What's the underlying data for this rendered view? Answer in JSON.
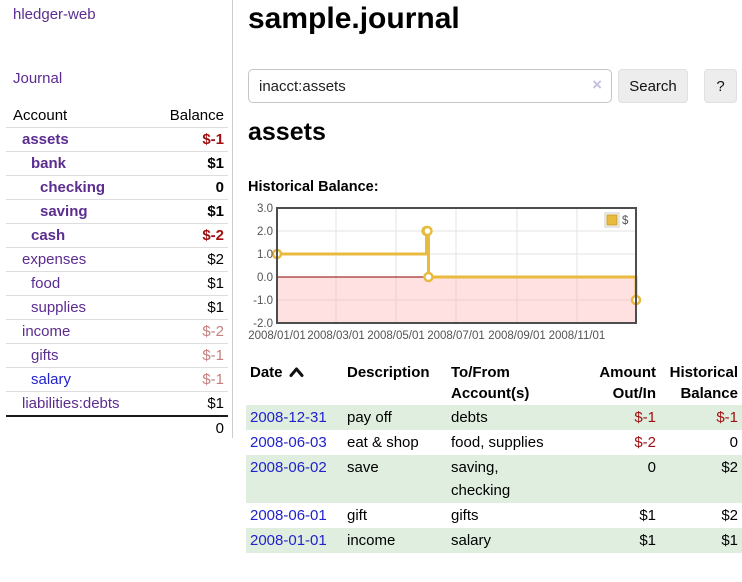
{
  "app": {
    "brand": "hledger-web"
  },
  "sidebar": {
    "nav_journal": "Journal",
    "accounts_table": {
      "header_account": "Account",
      "header_balance": "Balance",
      "rows": [
        {
          "name": "assets",
          "depth": 1,
          "balance": "$-1",
          "bold": true
        },
        {
          "name": "bank",
          "depth": 2,
          "balance": "$1",
          "bold": true
        },
        {
          "name": "checking",
          "depth": 3,
          "balance": "0",
          "bold": true
        },
        {
          "name": "saving",
          "depth": 3,
          "balance": "$1",
          "bold": true
        },
        {
          "name": "cash",
          "depth": 2,
          "balance": "$-2",
          "bold": true
        },
        {
          "name": "expenses",
          "depth": 1,
          "balance": "$2",
          "bold": false
        },
        {
          "name": "food",
          "depth": 2,
          "balance": "$1",
          "bold": false
        },
        {
          "name": "supplies",
          "depth": 2,
          "balance": "$1",
          "bold": false
        },
        {
          "name": "income",
          "depth": 1,
          "balance": "$-2",
          "bold": false
        },
        {
          "name": "gifts",
          "depth": 2,
          "balance": "$-1",
          "bold": false
        },
        {
          "name": "salary",
          "depth": 2,
          "balance": "$-1",
          "bold": false,
          "link_color": "blue"
        },
        {
          "name": "liabilities:debts",
          "depth": 1,
          "balance": "$1",
          "bold": false
        }
      ],
      "total": "0"
    }
  },
  "header": {
    "title": "sample.journal"
  },
  "search": {
    "value": "inacct:assets",
    "clear_icon": "×",
    "button_label": "Search",
    "help_label": "?"
  },
  "account_page": {
    "heading": "assets",
    "chart_title": "Historical Balance:"
  },
  "chart_data": {
    "type": "line",
    "step": true,
    "title": "Historical Balance:",
    "ylim": [
      -2,
      3
    ],
    "yticks": [
      "3.0",
      "2.0",
      "1.0",
      "0.0",
      "-1.0",
      "-2.0"
    ],
    "xticks": [
      "2008/01/01",
      "2008/03/01",
      "2008/05/01",
      "2008/07/01",
      "2008/09/01",
      "2008/11/01"
    ],
    "x_start": "2008/01/01",
    "x_end": "2008/12/31",
    "grid": true,
    "legend_position": "top-right",
    "series": [
      {
        "name": "$",
        "color": "#e8bb3f",
        "points": [
          {
            "date": "2008/01/01",
            "value": 1
          },
          {
            "date": "2008/06/01",
            "value": 2
          },
          {
            "date": "2008/06/02",
            "value": 2
          },
          {
            "date": "2008/06/03",
            "value": 0
          },
          {
            "date": "2008/12/31",
            "value": -1
          }
        ]
      }
    ],
    "negative_region_fill": "#ffb0b0",
    "zero_line_color": "#8b0000"
  },
  "transactions": {
    "headers": {
      "date": "Date",
      "sort_icon": "chevron-up",
      "description": "Description",
      "tofrom_line1": "To/From",
      "tofrom_line2": "Account(s)",
      "amount_line1": "Amount",
      "amount_line2": "Out/In",
      "balance_line1": "Historical",
      "balance_line2": "Balance"
    },
    "rows": [
      {
        "date": "2008-12-31",
        "description": "pay off",
        "accounts": [
          "debts"
        ],
        "amount": "$-1",
        "balance": "$-1",
        "shaded": true
      },
      {
        "date": "2008-06-03",
        "description": "eat & shop",
        "accounts": [
          "food, supplies"
        ],
        "amount": "$-2",
        "balance": "0",
        "shaded": false
      },
      {
        "date": "2008-06-02",
        "description": "save",
        "accounts": [
          "saving,",
          "checking"
        ],
        "amount": "0",
        "balance": "$2",
        "shaded": true
      },
      {
        "date": "2008-06-01",
        "description": "gift",
        "accounts": [
          "gifts"
        ],
        "amount": "$1",
        "balance": "$2",
        "shaded": false
      },
      {
        "date": "2008-01-01",
        "description": "income",
        "accounts": [
          "salary"
        ],
        "amount": "$1",
        "balance": "$1",
        "shaded": true
      }
    ]
  },
  "colors": {
    "accent_purple": "#5b2d90",
    "link_blue": "#2222cc",
    "negative_strong": "#a01010",
    "negative_soft": "#c47f7f",
    "row_stripe_green": "#dfeedf",
    "series_gold": "#e8bb3f",
    "zero_line": "#8b0000"
  }
}
